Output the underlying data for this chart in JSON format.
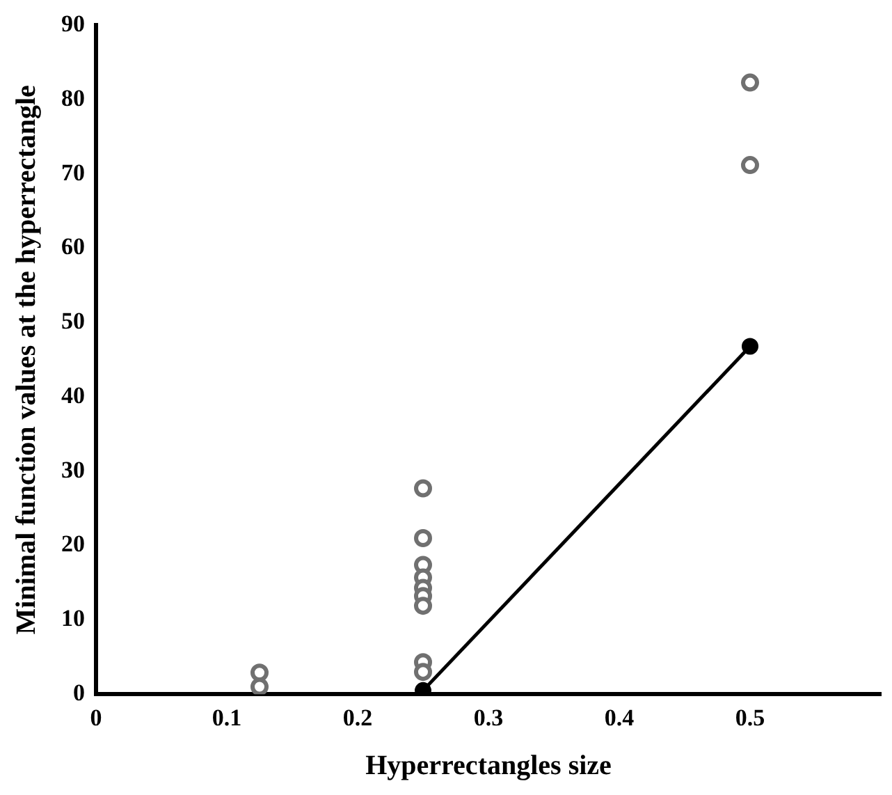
{
  "chart_data": {
    "type": "scatter",
    "xlabel": "Hyperrectangles size",
    "ylabel": "Minimal function values at the hyperrectangle",
    "xlim": [
      0,
      0.6
    ],
    "xticks": [
      0,
      0.1,
      0.2,
      0.3,
      0.4,
      0.5
    ],
    "ylim": [
      0,
      90
    ],
    "yticks": [
      0,
      10,
      20,
      30,
      40,
      50,
      60,
      70,
      80,
      90
    ],
    "grid": false,
    "legend": false,
    "marker": "circle",
    "series": [
      {
        "type": "scatter",
        "color": "#707070",
        "x": [
          0.125,
          0.125,
          0.25,
          0.25,
          0.25,
          0.25,
          0.25,
          0.25,
          0.25,
          0.25,
          0.25,
          0.5,
          0.5
        ],
        "values": [
          2.9,
          1.0,
          27.7,
          21.0,
          17.4,
          15.7,
          14.3,
          13.2,
          11.9,
          4.3,
          3.0,
          82.3,
          71.2
        ]
      },
      {
        "type": "line",
        "color": "#000000",
        "x": [
          0.25,
          0.5
        ],
        "values": [
          0.5,
          46.8
        ]
      }
    ]
  }
}
